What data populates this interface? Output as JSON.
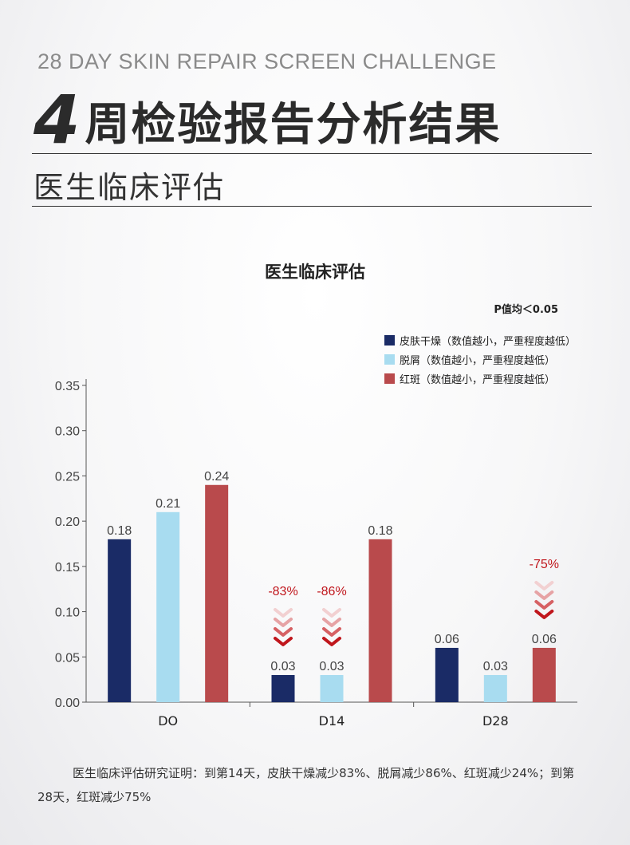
{
  "header": {
    "eyebrow": "28 DAY SKIN REPAIR SCREEN CHALLENGE",
    "week_number": "4",
    "week_title": "周检验报告分析结果",
    "subtitle": "医生临床评估"
  },
  "chart_data": {
    "type": "bar",
    "title": "医生临床评估",
    "note": "P值均＜0.05",
    "categories": [
      "DO",
      "D14",
      "D28"
    ],
    "series": [
      {
        "name": "皮肤干燥（数值越小，严重程度越低）",
        "color": "#1a2b66",
        "values": [
          0.18,
          0.03,
          0.06
        ],
        "labels": [
          "0.18",
          "0.03",
          "0.06"
        ]
      },
      {
        "name": "脱屑（数值越小，严重程度越低）",
        "color": "#a8dcf0",
        "values": [
          0.21,
          0.03,
          0.03
        ],
        "labels": [
          "0.21",
          "0.03",
          "0.03"
        ]
      },
      {
        "name": "红斑（数值越小，严重程度越低）",
        "color": "#b94a4c",
        "values": [
          0.24,
          0.18,
          0.06
        ],
        "labels": [
          "0.24",
          "0.18",
          "0.06"
        ]
      }
    ],
    "y_ticks": [
      "0.00",
      "0.05",
      "0.10",
      "0.15",
      "0.20",
      "0.25",
      "0.30",
      "0.35"
    ],
    "ylim": [
      0,
      0.35
    ],
    "annotations": [
      {
        "category": 1,
        "series": 0,
        "text": "-83%",
        "color": "#c0161c"
      },
      {
        "category": 1,
        "series": 1,
        "text": "-86%",
        "color": "#c0161c"
      },
      {
        "category": 2,
        "series": 2,
        "text": "-75%",
        "color": "#c0161c"
      }
    ],
    "grid": false,
    "legend_position": "top-right"
  },
  "footer": {
    "text": "医生临床评估研究证明：到第14天，皮肤干燥减少83%、脱屑减少86%、红斑减少24%；到第28天，红斑减少75%"
  }
}
